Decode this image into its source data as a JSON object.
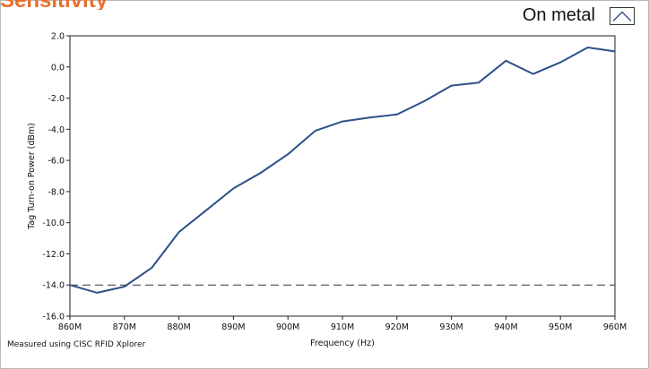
{
  "title_fragment": "Sensitivity",
  "footnote": "Measured using CISC RFID Xplorer",
  "colors": {
    "line": "#2e5089",
    "title": "#e86f2c",
    "threshold": "#333333"
  },
  "legend": {
    "label": "On metal",
    "icon": "line-sample-icon"
  },
  "chart_data": {
    "type": "line",
    "title": "",
    "xlabel": "Frequency (Hz)",
    "ylabel": "Tag Turn-on Power (dBm)",
    "x_unit": "MHz",
    "xlim": [
      860,
      960
    ],
    "ylim": [
      -16,
      2
    ],
    "x_ticks": [
      860,
      870,
      880,
      890,
      900,
      910,
      920,
      930,
      940,
      950,
      960
    ],
    "x_tick_labels": [
      "860M",
      "870M",
      "880M",
      "890M",
      "900M",
      "910M",
      "920M",
      "930M",
      "940M",
      "950M",
      "960M"
    ],
    "y_ticks": [
      2,
      0,
      -2,
      -4,
      -6,
      -8,
      -10,
      -12,
      -14,
      -16
    ],
    "y_tick_labels": [
      "2.0",
      "0.0",
      "-2.0",
      "-4.0",
      "-6.0",
      "-8.0",
      "-10.0",
      "-12.0",
      "-14.0",
      "-16.0"
    ],
    "grid": false,
    "legend_position": "top-right",
    "series": [
      {
        "name": "On metal",
        "x": [
          860,
          865,
          870,
          875,
          880,
          885,
          890,
          895,
          900,
          905,
          910,
          915,
          920,
          925,
          930,
          935,
          940,
          945,
          950,
          955,
          960
        ],
        "y": [
          -14.0,
          -14.5,
          -14.1,
          -12.9,
          -10.6,
          -9.2,
          -7.8,
          -6.8,
          -5.6,
          -4.1,
          -3.5,
          -3.25,
          -3.05,
          -2.2,
          -1.2,
          -1.0,
          0.4,
          -0.45,
          0.3,
          1.25,
          1.0
        ]
      }
    ],
    "reference_lines": [
      {
        "axis": "y",
        "value": -14,
        "style": "dashed"
      }
    ]
  }
}
